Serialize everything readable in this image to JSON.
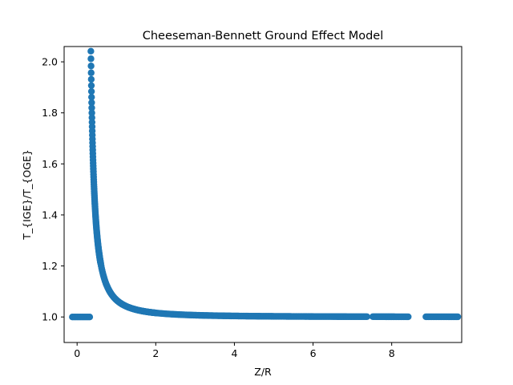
{
  "chart_data": {
    "type": "scatter",
    "title": "Cheeseman-Bennett Ground Effect Model",
    "xlabel": "Z/R",
    "ylabel": "T_{IGE}/T_{OGE}",
    "xlim": [
      -0.33,
      9.78
    ],
    "ylim": [
      0.9,
      2.06
    ],
    "xticks": [
      0,
      2,
      4,
      6,
      8
    ],
    "yticks": [
      1.0,
      1.2,
      1.4,
      1.6,
      1.8,
      2.0
    ],
    "grid": false,
    "marker_color": "#1f77b4",
    "model": "T_IGE/T_OGE = 1/(1 - (1/(4*Z/R))^2) for Z/R > 0.35, else 1.0",
    "x_range": [
      -0.12,
      9.7
    ],
    "gaps": [
      [
        7.4,
        7.5
      ],
      [
        8.45,
        8.85
      ]
    ],
    "sample_points": [
      {
        "x": -0.1,
        "y": 1.0
      },
      {
        "x": 0.3,
        "y": 1.0
      },
      {
        "x": 0.35,
        "y": 2.01
      },
      {
        "x": 0.36,
        "y": 1.93
      },
      {
        "x": 0.37,
        "y": 1.84
      },
      {
        "x": 0.4,
        "y": 1.64
      },
      {
        "x": 0.45,
        "y": 1.45
      },
      {
        "x": 0.5,
        "y": 1.33
      },
      {
        "x": 0.6,
        "y": 1.2
      },
      {
        "x": 0.8,
        "y": 1.11
      },
      {
        "x": 1.0,
        "y": 1.07
      },
      {
        "x": 1.5,
        "y": 1.03
      },
      {
        "x": 2.0,
        "y": 1.016
      },
      {
        "x": 3.0,
        "y": 1.007
      },
      {
        "x": 4.0,
        "y": 1.004
      },
      {
        "x": 6.0,
        "y": 1.002
      },
      {
        "x": 8.0,
        "y": 1.001
      },
      {
        "x": 9.7,
        "y": 1.0007
      }
    ]
  }
}
